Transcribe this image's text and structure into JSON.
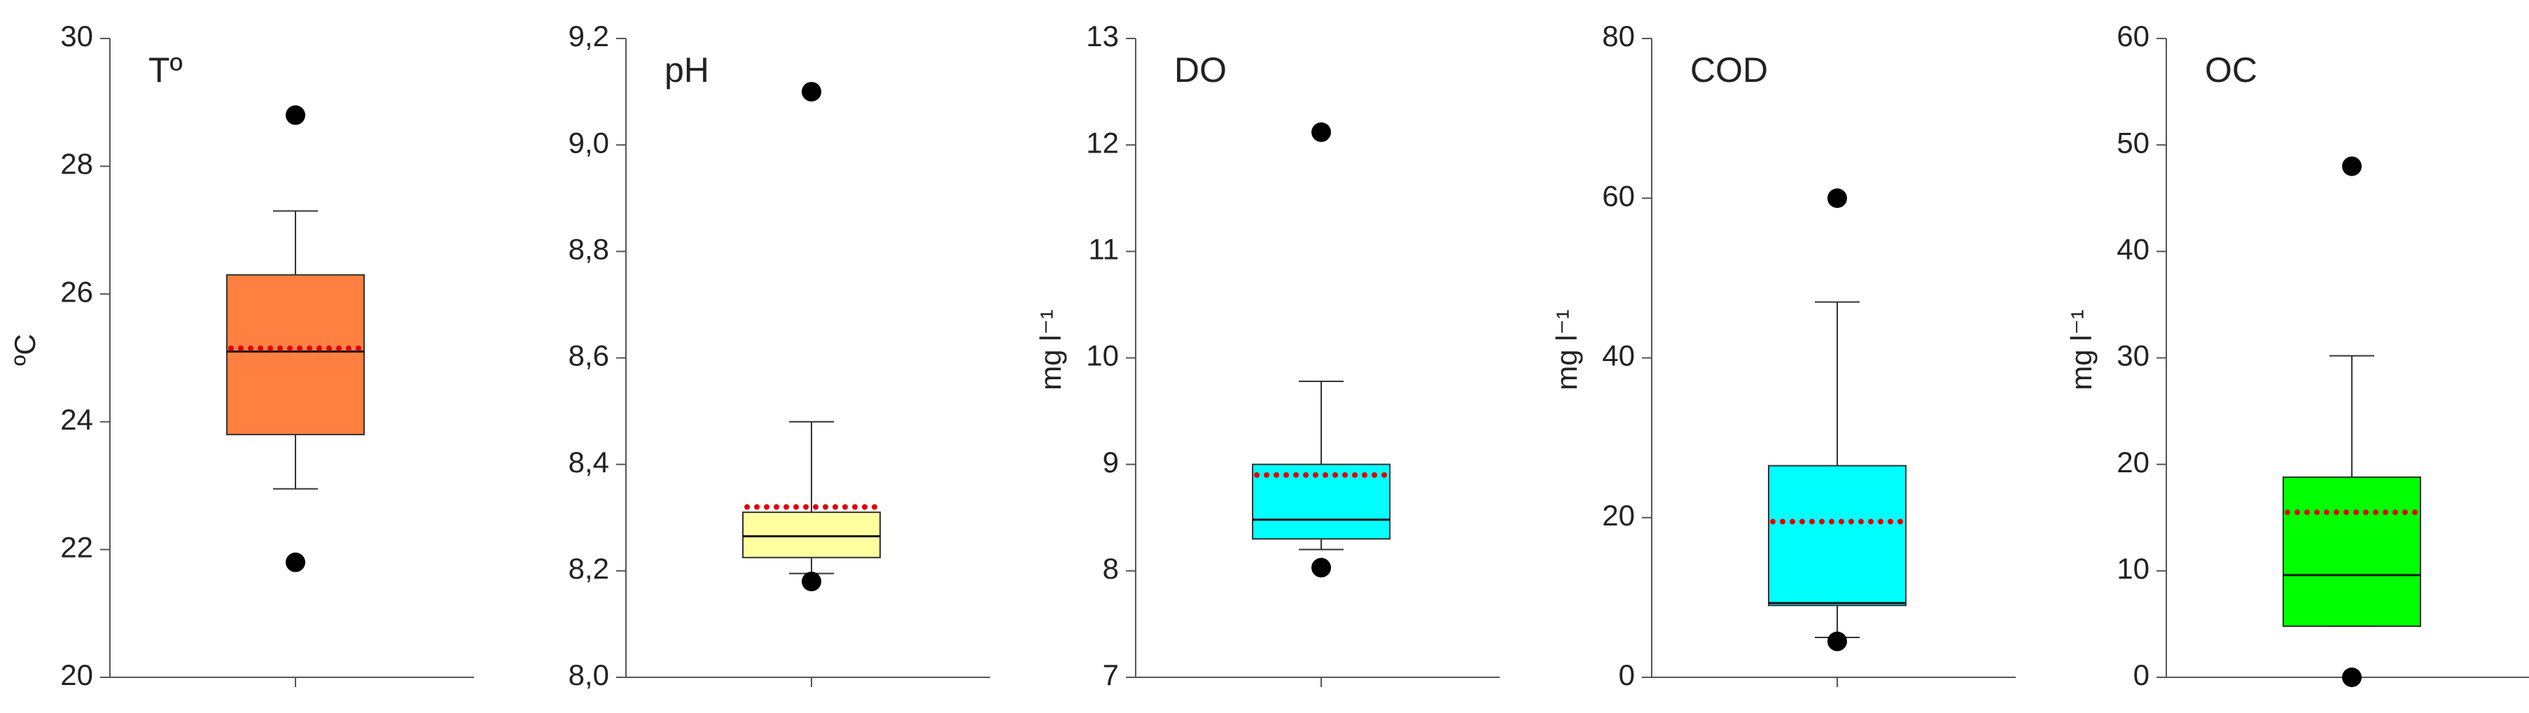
{
  "chart_data": [
    {
      "type": "box",
      "title": "Tº",
      "ylabel": "ºC",
      "color": "#ff8040",
      "ylim": [
        20,
        30
      ],
      "yticks": [
        20,
        22,
        24,
        26,
        28,
        30
      ],
      "whisker_low": 22.95,
      "q1": 23.8,
      "median": 25.1,
      "q3": 26.3,
      "whisker_high": 27.3,
      "mean": 25.15,
      "outliers": [
        28.8,
        21.8
      ]
    },
    {
      "type": "box",
      "title": "pH",
      "color": "#ffffa0",
      "ylim": [
        8.0,
        9.2
      ],
      "yticks": [
        {
          "value": 8.0,
          "label": "8,0"
        },
        {
          "value": 8.2,
          "label": "8,2"
        },
        {
          "value": 8.4,
          "label": "8,4"
        },
        {
          "value": 8.6,
          "label": "8,6"
        },
        {
          "value": 8.8,
          "label": "8,8"
        },
        {
          "value": 9.0,
          "label": "9,0"
        },
        {
          "value": 9.2,
          "label": "9,2"
        }
      ],
      "whisker_low": 8.195,
      "q1": 8.225,
      "median": 8.265,
      "q3": 8.31,
      "whisker_high": 8.48,
      "mean": 8.32,
      "outliers": [
        9.1,
        8.18
      ]
    },
    {
      "type": "box",
      "title": "DO",
      "ylabel": "mg l⁻¹",
      "color": "#00ffff",
      "ylim": [
        7,
        13
      ],
      "yticks": [
        7,
        8,
        9,
        10,
        11,
        12,
        13
      ],
      "whisker_low": 8.2,
      "q1": 8.3,
      "median": 8.48,
      "q3": 9.0,
      "whisker_high": 9.78,
      "mean": 8.9,
      "outliers": [
        12.12,
        8.03
      ]
    },
    {
      "type": "box",
      "title": "COD",
      "ylabel": "mg l⁻¹",
      "color": "#00ffff",
      "ylim": [
        0,
        80
      ],
      "yticks": [
        0,
        20,
        40,
        60,
        80
      ],
      "whisker_low": 5,
      "q1": 9,
      "median": 9.3,
      "q3": 26.5,
      "whisker_high": 47,
      "mean": 19.5,
      "outliers": [
        60,
        4.5
      ]
    },
    {
      "type": "box",
      "title": "OC",
      "ylabel": "mg l⁻¹",
      "color": "#00ff00",
      "ylim": [
        0,
        60
      ],
      "yticks": [
        0,
        10,
        20,
        30,
        40,
        50,
        60
      ],
      "whisker_low": 4.8,
      "q1": 4.8,
      "median": 9.6,
      "q3": 18.8,
      "whisker_high": 30.2,
      "mean": 15.5,
      "outliers": [
        48,
        0
      ]
    }
  ]
}
